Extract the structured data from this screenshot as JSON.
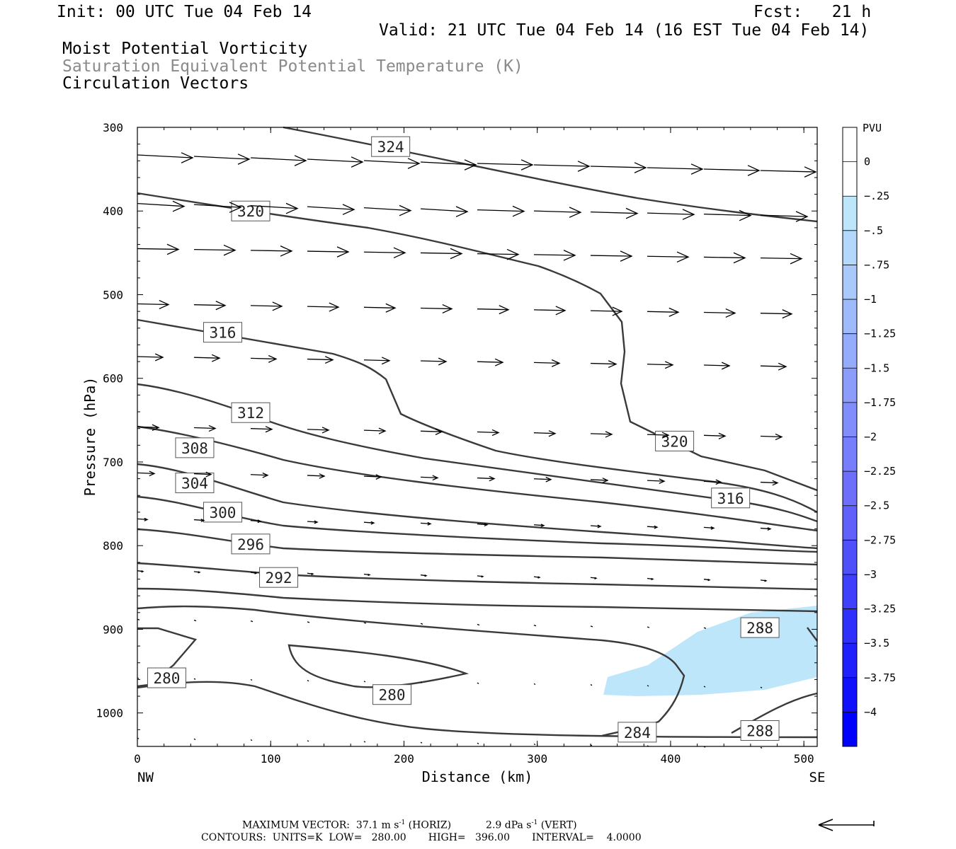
{
  "header": {
    "init": "Init: 00 UTC Tue 04 Feb 14",
    "fcst": "Fcst:   21 h",
    "valid": "Valid: 21 UTC Tue 04 Feb 14 (16 EST Tue 04 Feb 14)",
    "line1": "Moist Potential Vorticity",
    "line2": "Saturation Equivalent Potential Temperature (K)",
    "line3": "Circulation Vectors"
  },
  "footer": {
    "max_vector_label": "MAXIMUM VECTOR:",
    "horiz_value": "37.1 m s",
    "horiz_unit": "(HORIZ)",
    "vert_value": "2.9 dPa s",
    "vert_unit": "(VERT)",
    "exponent": "-1",
    "contours": "CONTOURS:  UNITS=K  LOW=   280.00       HIGH=   396.00       INTERVAL=    4.0000"
  },
  "chart_data": {
    "type": "cross-section",
    "xlabel": "Distance (km)",
    "ylabel": "Pressure (hPa)",
    "xlim": [
      0,
      510
    ],
    "ylim": [
      1040,
      300
    ],
    "x_ticks": [
      "0",
      "100",
      "200",
      "300",
      "400",
      "500"
    ],
    "y_ticks": [
      "300",
      "400",
      "500",
      "600",
      "700",
      "800",
      "900",
      "1000"
    ],
    "x_end_labels": {
      "left": "NW",
      "right": "SE"
    },
    "colorbar": {
      "unit": "PVU",
      "levels": [
        "0",
        "-.25",
        "-.5",
        "-.75",
        "-1",
        "-1.25",
        "-1.5",
        "-1.75",
        "-2",
        "-2.25",
        "-2.5",
        "-2.75",
        "-3",
        "-3.25",
        "-3.5",
        "-3.75",
        "-4"
      ],
      "colors": [
        "#ffffff",
        "#ffffff",
        "#bde6fa",
        "#b3d8fb",
        "#a9c9fb",
        "#9fbafb",
        "#95abfb",
        "#8b9cfb",
        "#818dfb",
        "#777efb",
        "#6d6ffb",
        "#6060fb",
        "#5050fb",
        "#4040fc",
        "#3030fc",
        "#2020fd",
        "#1010fd",
        "#0000fe"
      ]
    },
    "mpv_region_color": "#bde6fa",
    "contour_labels": [
      {
        "text": "324",
        "x": 190,
        "p": 323
      },
      {
        "text": "320",
        "x": 85,
        "p": 400
      },
      {
        "text": "316",
        "x": 64,
        "p": 545
      },
      {
        "text": "312",
        "x": 85,
        "p": 641
      },
      {
        "text": "308",
        "x": 43,
        "p": 683
      },
      {
        "text": "304",
        "x": 43,
        "p": 725
      },
      {
        "text": "300",
        "x": 64,
        "p": 760
      },
      {
        "text": "296",
        "x": 85,
        "p": 798
      },
      {
        "text": "292",
        "x": 106,
        "p": 838
      },
      {
        "text": "320",
        "x": 403,
        "p": 675
      },
      {
        "text": "316",
        "x": 445,
        "p": 743
      },
      {
        "text": "288",
        "x": 467,
        "p": 898
      },
      {
        "text": "280",
        "x": 22,
        "p": 958
      },
      {
        "text": "280",
        "x": 191,
        "p": 978
      },
      {
        "text": "284",
        "x": 375,
        "p": 1023
      },
      {
        "text": "288",
        "x": 467,
        "p": 1021
      }
    ]
  }
}
